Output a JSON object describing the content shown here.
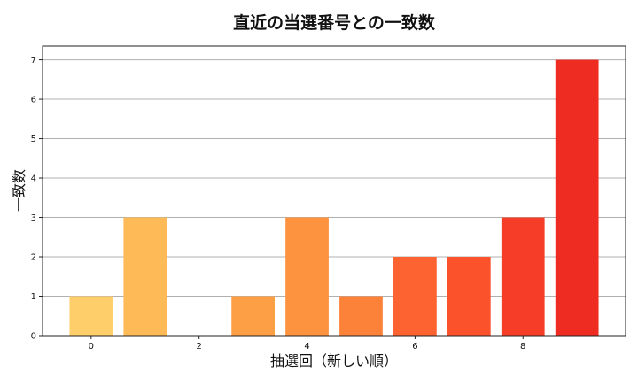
{
  "chart_data": {
    "type": "bar",
    "title": "直近の当選番号との一致数",
    "xlabel": "抽選回（新しい順）",
    "ylabel": "一致数",
    "x": [
      0,
      1,
      2,
      3,
      4,
      5,
      6,
      7,
      8,
      9
    ],
    "values": [
      1,
      3,
      0,
      1,
      3,
      1,
      2,
      2,
      3,
      7
    ],
    "colors": [
      "#fdce6a",
      "#feba56",
      "#fea746",
      "#fd9f44",
      "#fd933f",
      "#fc8239",
      "#fc6330",
      "#fc522c",
      "#f53d28",
      "#ee2c22"
    ],
    "xticks": [
      0,
      2,
      4,
      6,
      8
    ],
    "yticks": [
      0,
      1,
      2,
      3,
      4,
      5,
      6,
      7
    ],
    "xlim": [
      -0.9,
      9.9
    ],
    "ylim": [
      0,
      7.35
    ],
    "grid": "y"
  }
}
